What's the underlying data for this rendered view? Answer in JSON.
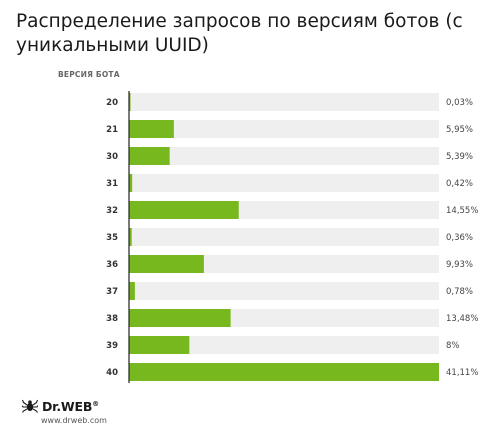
{
  "chart_data": {
    "type": "bar",
    "orientation": "horizontal",
    "title": "Распределение запросов по версиям ботов (с уникальными UUID)",
    "category_header": "ВЕРСИЯ БОТА",
    "categories": [
      "20",
      "21",
      "30",
      "31",
      "32",
      "35",
      "36",
      "37",
      "38",
      "39",
      "40"
    ],
    "values": [
      0.03,
      5.95,
      5.39,
      0.42,
      14.55,
      0.36,
      9.93,
      0.78,
      13.48,
      8,
      41.11
    ],
    "value_labels": [
      "0,03%",
      "5,95%",
      "5,39%",
      "0,42%",
      "14,55%",
      "0,36%",
      "9,93%",
      "0,78%",
      "13,48%",
      "8%",
      "41,11%"
    ],
    "xlim": [
      0,
      41.11
    ],
    "grid": false,
    "colors": {
      "bar": "#77b81e",
      "track": "#efefef",
      "axis": "#222222"
    }
  },
  "branding": {
    "logo_name": "Dr.WEB",
    "logo_text": "Dr.WEB",
    "logo_mark": "®",
    "url": "www.drweb.com"
  }
}
